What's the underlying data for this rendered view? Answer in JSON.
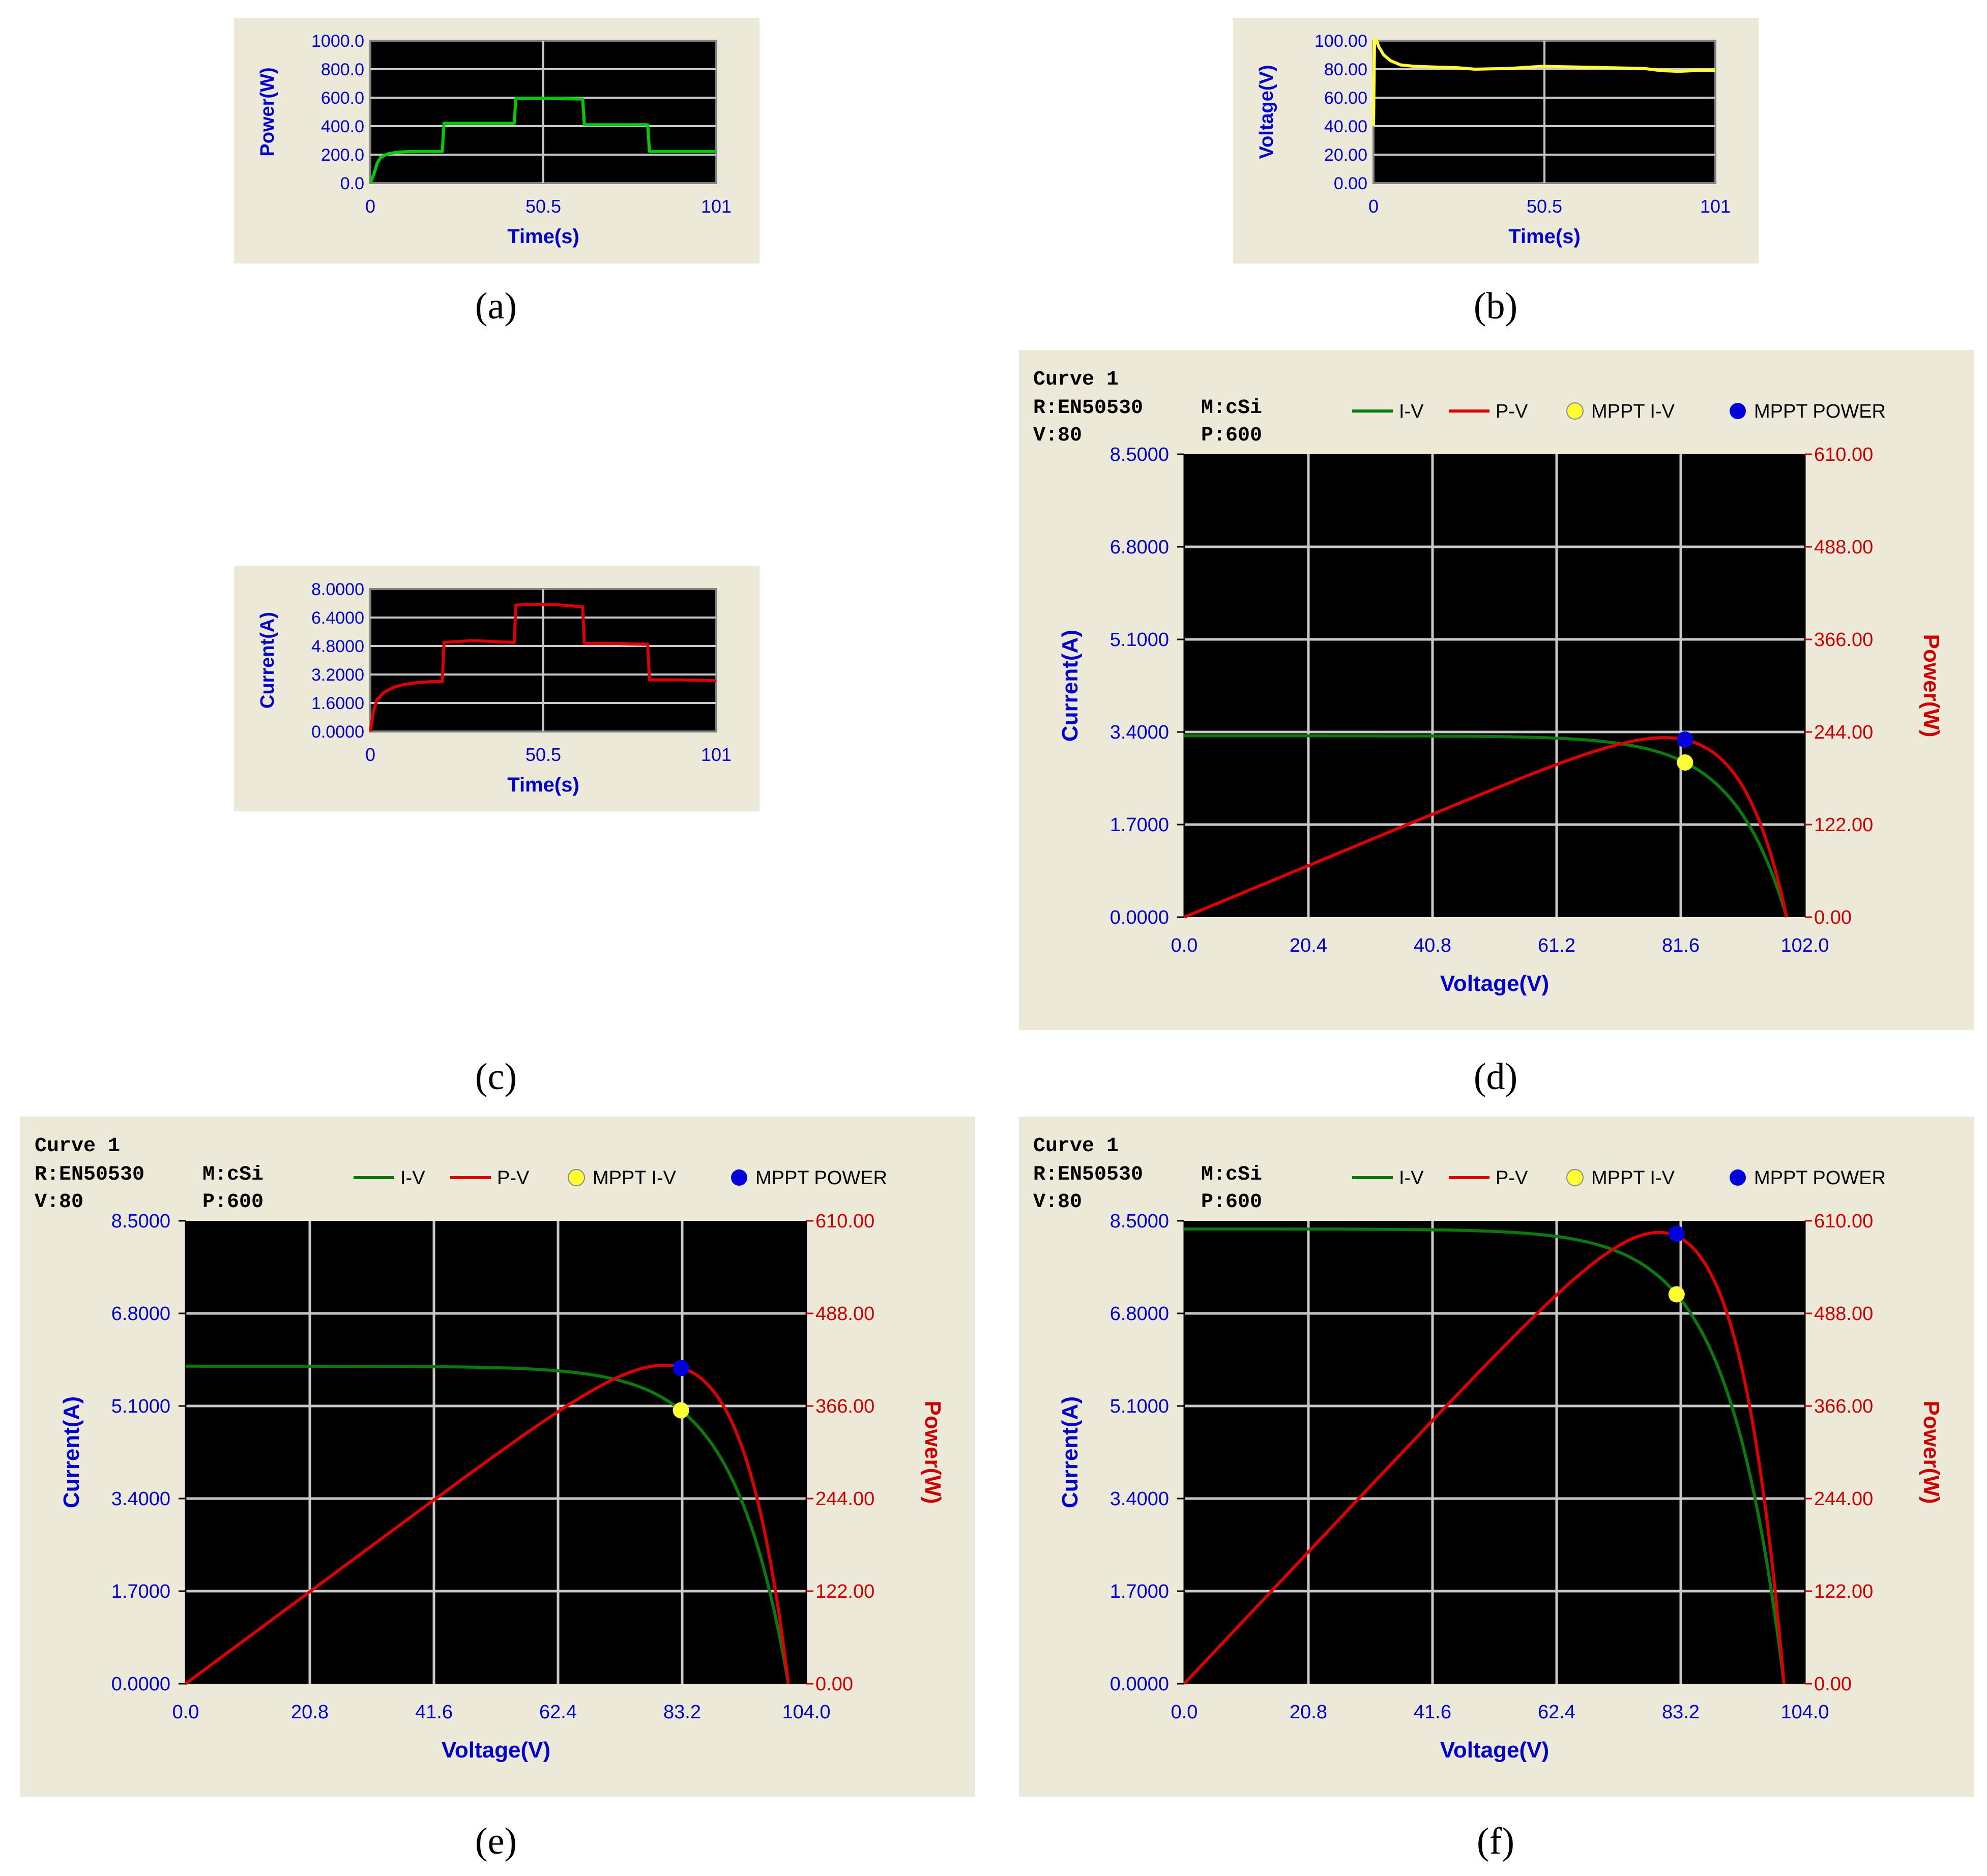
{
  "colors": {
    "panel_bg": "#ECE9D8",
    "plot_bg": "#000000",
    "grid": "#C8C8C8",
    "axis_text_blue": "#0000CC",
    "axis_text_red": "#CC0000",
    "green": "#00CC00",
    "dark_green": "#0A7A0A",
    "yellow": "#FFFF33",
    "red": "#DD0000",
    "blue": "#0000DD"
  },
  "captions": [
    "(a)",
    "(b)",
    "(c)",
    "(d)",
    "(e)",
    "(f)"
  ],
  "chart_data": [
    {
      "id": "a",
      "type": "line",
      "xlabel": "Time(s)",
      "ylabel": "Power(W)",
      "xlim": [
        0,
        101
      ],
      "ylim": [
        0,
        1000
      ],
      "x_ticks": [
        "0",
        "50.5",
        "101"
      ],
      "y_ticks": [
        "0.0",
        "200.0",
        "400.0",
        "600.0",
        "800.0",
        "1000.0"
      ],
      "grid": true,
      "series": [
        {
          "color": "green",
          "x": [
            0,
            1,
            2,
            3,
            5,
            8,
            12,
            15,
            21,
            21.5,
            23,
            30,
            36,
            42,
            42.5,
            50,
            62,
            62.5,
            70,
            81,
            81.5,
            90,
            101
          ],
          "y": [
            0,
            60,
            140,
            180,
            205,
            218,
            222,
            222,
            222,
            420,
            420,
            420,
            420,
            420,
            595,
            595,
            590,
            410,
            410,
            410,
            222,
            222,
            222
          ]
        }
      ]
    },
    {
      "id": "b",
      "type": "line",
      "xlabel": "Time(s)",
      "ylabel": "Voltage(V)",
      "xlim": [
        0,
        101
      ],
      "ylim": [
        0,
        100
      ],
      "x_ticks": [
        "0",
        "50.5",
        "101"
      ],
      "y_ticks": [
        "0.00",
        "20.00",
        "40.00",
        "60.00",
        "80.00",
        "100.00"
      ],
      "grid": true,
      "series": [
        {
          "color": "yellow",
          "x": [
            0,
            0.3,
            0.8,
            1.5,
            3,
            5,
            8,
            12,
            18,
            25,
            30,
            40,
            50,
            60,
            70,
            80,
            85,
            90,
            95,
            101
          ],
          "y": [
            40,
            100,
            101,
            96,
            90,
            86,
            83,
            82,
            81.5,
            81,
            80,
            80.5,
            82,
            81.5,
            81,
            80.5,
            79,
            78.5,
            79,
            79
          ]
        }
      ]
    },
    {
      "id": "c",
      "type": "line",
      "xlabel": "Time(s)",
      "ylabel": "Current(A)",
      "xlim": [
        0,
        101
      ],
      "ylim": [
        0,
        8
      ],
      "x_ticks": [
        "0",
        "50.5",
        "101"
      ],
      "y_ticks": [
        "0.0000",
        "1.6000",
        "3.2000",
        "4.8000",
        "6.4000",
        "8.0000"
      ],
      "grid": true,
      "series": [
        {
          "color": "red",
          "x": [
            0,
            1,
            2,
            4,
            7,
            10,
            14,
            18,
            21,
            21.5,
            25,
            30,
            36,
            42,
            42.5,
            50,
            56,
            62,
            62.5,
            70,
            81,
            81.5,
            90,
            101
          ],
          "y": [
            0,
            1.2,
            1.8,
            2.2,
            2.5,
            2.65,
            2.75,
            2.8,
            2.8,
            5.0,
            5.05,
            5.1,
            5.05,
            5.0,
            7.1,
            7.15,
            7.1,
            7.0,
            4.95,
            4.95,
            4.9,
            2.9,
            2.9,
            2.85
          ]
        }
      ]
    },
    {
      "id": "d",
      "type": "line",
      "header": [
        "Curve 1",
        "R:EN50530",
        "M:cSi",
        "V:80",
        "P:600"
      ],
      "legend": [
        "I-V",
        "P-V",
        "MPPT I-V",
        "MPPT POWER"
      ],
      "xlabel": "Voltage(V)",
      "ylabel": "Current(A)",
      "y2label": "Power(W)",
      "xlim": [
        0,
        102
      ],
      "ylim": [
        0,
        8.5
      ],
      "y2lim": [
        0,
        610
      ],
      "x_ticks": [
        "0.0",
        "20.4",
        "40.8",
        "61.2",
        "81.6",
        "102.0"
      ],
      "y_ticks": [
        "0.0000",
        "1.7000",
        "3.4000",
        "5.1000",
        "6.8000",
        "8.5000"
      ],
      "y2_ticks": [
        "0.00",
        "122.00",
        "244.00",
        "366.00",
        "488.00",
        "610.00"
      ],
      "grid": true,
      "iv": {
        "Isc": 3.33,
        "Voc": 99,
        "Vmp": 82.3,
        "Imp": 2.84
      },
      "mppt_iv": [
        82.3,
        2.84
      ],
      "mppt_power": [
        82.3,
        234
      ]
    },
    {
      "id": "e",
      "type": "line",
      "header": [
        "Curve 1",
        "R:EN50530",
        "M:cSi",
        "V:80",
        "P:600"
      ],
      "legend": [
        "I-V",
        "P-V",
        "MPPT I-V",
        "MPPT POWER"
      ],
      "xlabel": "Voltage(V)",
      "ylabel": "Current(A)",
      "y2label": "Power(W)",
      "xlim": [
        0,
        104
      ],
      "ylim": [
        0,
        8.5
      ],
      "y2lim": [
        0,
        610
      ],
      "x_ticks": [
        "0.0",
        "20.8",
        "41.6",
        "62.4",
        "83.2",
        "104.0"
      ],
      "y_ticks": [
        "0.0000",
        "1.7000",
        "3.4000",
        "5.1000",
        "6.8000",
        "8.5000"
      ],
      "y2_ticks": [
        "0.00",
        "122.00",
        "244.00",
        "366.00",
        "488.00",
        "610.00"
      ],
      "grid": true,
      "iv": {
        "Isc": 5.83,
        "Voc": 101,
        "Vmp": 83,
        "Imp": 5.02
      },
      "mppt_iv": [
        83,
        5.02
      ],
      "mppt_power": [
        83,
        416
      ]
    },
    {
      "id": "f",
      "type": "line",
      "header": [
        "Curve 1",
        "R:EN50530",
        "M:cSi",
        "V:80",
        "P:600"
      ],
      "legend": [
        "I-V",
        "P-V",
        "MPPT I-V",
        "MPPT POWER"
      ],
      "xlabel": "Voltage(V)",
      "ylabel": "Current(A)",
      "y2label": "Power(W)",
      "xlim": [
        0,
        104
      ],
      "ylim": [
        0,
        8.5
      ],
      "y2lim": [
        0,
        610
      ],
      "x_ticks": [
        "0.0",
        "20.8",
        "41.6",
        "62.4",
        "83.2",
        "104.0"
      ],
      "y_ticks": [
        "0.0000",
        "1.7000",
        "3.4000",
        "5.1000",
        "6.8000",
        "8.5000"
      ],
      "y2_ticks": [
        "0.00",
        "122.00",
        "244.00",
        "366.00",
        "488.00",
        "610.00"
      ],
      "grid": true,
      "iv": {
        "Isc": 8.35,
        "Voc": 100.5,
        "Vmp": 82.5,
        "Imp": 7.15
      },
      "mppt_iv": [
        82.5,
        7.15
      ],
      "mppt_power": [
        82.5,
        593
      ]
    }
  ]
}
